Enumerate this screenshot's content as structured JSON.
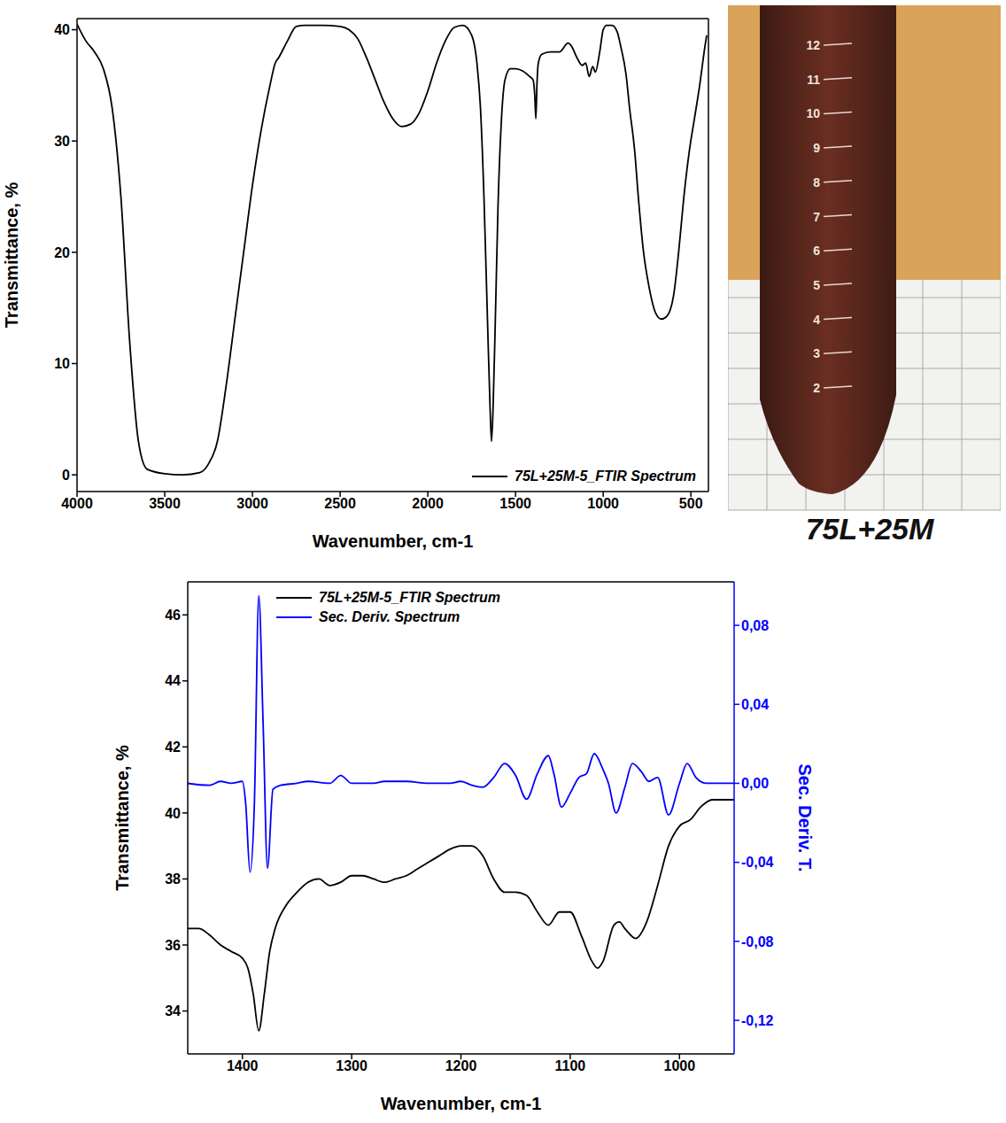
{
  "chart_data": [
    {
      "type": "line",
      "x_label": "Wavenumber, cm-1",
      "y_label": "Transmittance, %",
      "xlim": [
        4000,
        400
      ],
      "xticks": [
        4000,
        3500,
        3000,
        2500,
        2000,
        1500,
        1000,
        500
      ],
      "ylim": [
        -1.5,
        41
      ],
      "yticks": [
        0,
        10,
        20,
        30,
        40
      ],
      "legend": "lower right",
      "series": [
        {
          "name": "75L+25M-5_FTIR Spectrum",
          "color": "#000000",
          "x": [
            4000,
            3950,
            3900,
            3850,
            3800,
            3750,
            3700,
            3650,
            3600,
            3500,
            3400,
            3300,
            3250,
            3200,
            3150,
            3100,
            3050,
            3000,
            2950,
            2900,
            2870,
            2850,
            2800,
            2750,
            2700,
            2600,
            2500,
            2450,
            2400,
            2350,
            2300,
            2250,
            2200,
            2150,
            2100,
            2050,
            2000,
            1950,
            1900,
            1850,
            1800,
            1750,
            1720,
            1700,
            1680,
            1660,
            1645,
            1637,
            1628,
            1615,
            1600,
            1580,
            1560,
            1530,
            1500,
            1460,
            1420,
            1400,
            1390,
            1384,
            1378,
            1370,
            1350,
            1300,
            1250,
            1200,
            1180,
            1150,
            1120,
            1100,
            1080,
            1060,
            1045,
            1020,
            1000,
            980,
            950,
            920,
            900,
            870,
            850,
            820,
            800,
            770,
            740,
            700,
            670,
            640,
            600,
            570,
            540,
            510,
            480,
            450,
            420,
            410
          ],
          "values": [
            40.5,
            39,
            38,
            36.5,
            33,
            25,
            12,
            3,
            0.5,
            0.1,
            0,
            0.2,
            1,
            3,
            8,
            14,
            20,
            26,
            31,
            35,
            37,
            37.5,
            39,
            40.3,
            40.4,
            40.4,
            40.3,
            40,
            39.2,
            37.5,
            35.5,
            33.5,
            32,
            31.3,
            31.5,
            32.5,
            34.5,
            37,
            39,
            40.2,
            40.4,
            39.5,
            37,
            33,
            25,
            14,
            6,
            3,
            6,
            14,
            24,
            32,
            35.5,
            36.5,
            36.5,
            36.3,
            35.8,
            35.5,
            34,
            32,
            35,
            37,
            37.8,
            38,
            38,
            38.8,
            38.5,
            37.5,
            36.8,
            37,
            35.8,
            36.7,
            36.2,
            38,
            40,
            40.4,
            40.4,
            39.8,
            38.5,
            36,
            33,
            29,
            25,
            20,
            17,
            14.5,
            14,
            14.2,
            16,
            20,
            25,
            29,
            32,
            35,
            38.5,
            39.5
          ]
        }
      ]
    },
    {
      "type": "line",
      "x_label": "Wavenumber, cm-1",
      "y_label": "Transmittance, %",
      "y2_label": "Sec. Deriv. T.",
      "xlim": [
        1450,
        950
      ],
      "xticks": [
        1400,
        1300,
        1200,
        1100,
        1000
      ],
      "ylim": [
        32.7,
        47
      ],
      "yticks": [
        34,
        36,
        38,
        40,
        42,
        44,
        46
      ],
      "y2lim": [
        -0.137,
        0.102
      ],
      "y2ticks": [
        {
          "value": 0.08,
          "label": "0,08"
        },
        {
          "value": 0.04,
          "label": "0,04"
        },
        {
          "value": 0,
          "label": "0,00"
        },
        {
          "value": -0.04,
          "label": "-0,04"
        },
        {
          "value": -0.08,
          "label": "-0,08"
        },
        {
          "value": -0.12,
          "label": "-0,12"
        }
      ],
      "legend": "upper left",
      "series": [
        {
          "name": "75L+25M-5_FTIR Spectrum",
          "color": "#000000",
          "x": [
            1450,
            1440,
            1430,
            1420,
            1410,
            1400,
            1395,
            1390,
            1385,
            1380,
            1375,
            1370,
            1360,
            1350,
            1340,
            1330,
            1320,
            1310,
            1300,
            1290,
            1280,
            1270,
            1260,
            1250,
            1240,
            1230,
            1220,
            1210,
            1200,
            1190,
            1180,
            1170,
            1160,
            1150,
            1140,
            1130,
            1120,
            1110,
            1100,
            1090,
            1080,
            1075,
            1070,
            1060,
            1055,
            1050,
            1040,
            1030,
            1020,
            1010,
            1000,
            990,
            980,
            970,
            960,
            950
          ],
          "values": [
            36.5,
            36.5,
            36.3,
            36,
            35.8,
            35.6,
            35.3,
            34.5,
            33.4,
            34.5,
            35.8,
            36.5,
            37.2,
            37.6,
            37.9,
            38,
            37.8,
            37.9,
            38.1,
            38.1,
            38,
            37.9,
            38,
            38.1,
            38.3,
            38.5,
            38.7,
            38.9,
            39,
            39,
            38.7,
            38,
            37.6,
            37.6,
            37.5,
            37,
            36.6,
            37,
            37,
            36.3,
            35.5,
            35.3,
            35.5,
            36.6,
            36.7,
            36.5,
            36.2,
            36.7,
            37.8,
            39,
            39.6,
            39.8,
            40.2,
            40.4,
            40.4,
            40.4
          ]
        },
        {
          "name": "Sec. Deriv. Spectrum",
          "color": "#0000ff",
          "axis": "y2",
          "x": [
            1450,
            1430,
            1420,
            1410,
            1400,
            1397,
            1393,
            1389,
            1385,
            1381,
            1377,
            1372,
            1365,
            1350,
            1340,
            1320,
            1310,
            1300,
            1280,
            1270,
            1250,
            1230,
            1210,
            1200,
            1190,
            1180,
            1170,
            1160,
            1150,
            1140,
            1130,
            1120,
            1115,
            1108,
            1100,
            1092,
            1085,
            1078,
            1070,
            1065,
            1058,
            1050,
            1043,
            1035,
            1028,
            1020,
            1010,
            1000,
            993,
            985,
            975,
            960,
            950
          ],
          "values": [
            0,
            -0.001,
            0.001,
            0,
            0.001,
            -0.01,
            -0.045,
            -0.01,
            0.095,
            0.03,
            -0.043,
            -0.003,
            -0.001,
            0,
            0.001,
            0,
            0.004,
            0,
            0,
            0.001,
            0.001,
            0,
            0,
            0.001,
            -0.001,
            -0.002,
            0.003,
            0.01,
            0.004,
            -0.008,
            0.005,
            0.014,
            0.005,
            -0.012,
            -0.005,
            0.003,
            0.005,
            0.015,
            0.007,
            0,
            -0.015,
            -0.002,
            0.01,
            0.006,
            0.001,
            0.003,
            -0.016,
            0,
            0.01,
            0.003,
            0,
            0,
            0
          ]
        }
      ]
    }
  ],
  "photo": {
    "label": "75L+25M",
    "graduations": [
      2,
      3,
      4,
      5,
      6,
      7,
      8,
      9,
      10,
      11,
      12
    ]
  }
}
